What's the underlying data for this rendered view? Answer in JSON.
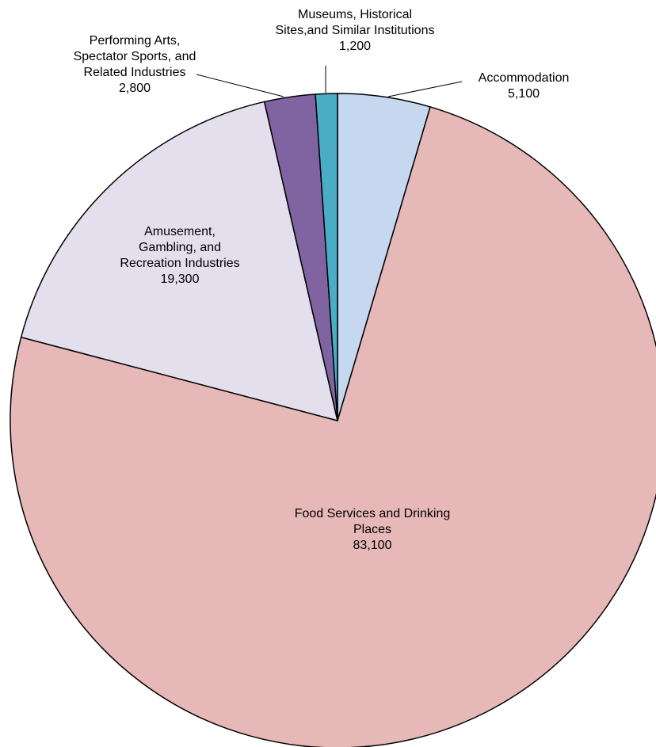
{
  "chart_data": {
    "type": "pie",
    "title": "",
    "start_angle_deg": 0,
    "direction": "clockwise",
    "slices": [
      {
        "label_lines": [
          "Accommodation",
          "5,100"
        ],
        "name": "Accommodation",
        "value": 5100,
        "color": "#c5d8f0"
      },
      {
        "label_lines": [
          "Food Services and Drinking",
          "Places",
          "83,100"
        ],
        "name": "Food Services and Drinking Places",
        "value": 83100,
        "color": "#e6b8b7"
      },
      {
        "label_lines": [
          "Amusement,",
          "Gambling, and",
          "Recreation Industries",
          "19,300"
        ],
        "name": "Amusement, Gambling, and Recreation Industries",
        "value": 19300,
        "color": "#e4dfec"
      },
      {
        "label_lines": [
          "Performing Arts,",
          "Spectator Sports, and",
          "Related Industries",
          "2,800"
        ],
        "name": "Performing Arts, Spectator Sports, and Related Industries",
        "value": 2800,
        "color": "#8064a2"
      },
      {
        "label_lines": [
          "Museums, Historical",
          "Sites,and Similar Institutions",
          "1,200"
        ],
        "name": "Museums, Historical Sites,and Similar Institutions",
        "value": 1200,
        "color": "#4bacc6"
      }
    ]
  }
}
